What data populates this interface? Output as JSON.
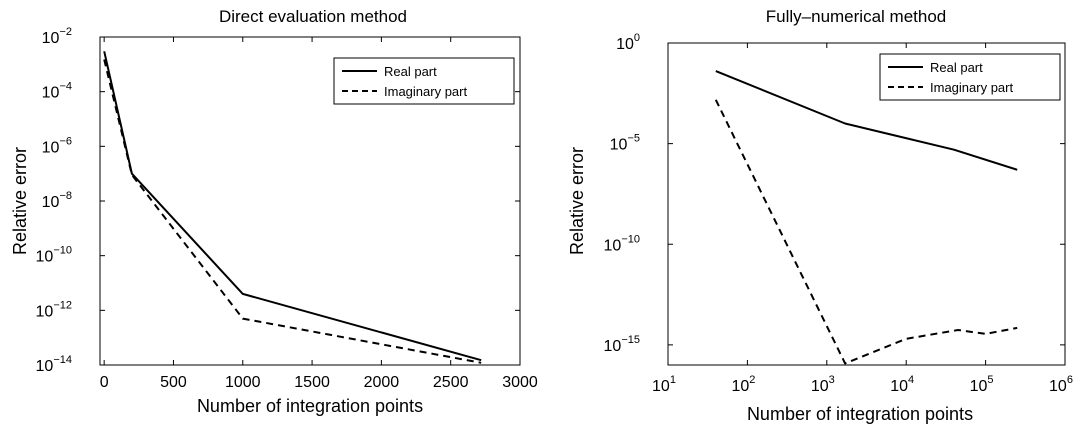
{
  "chart_data": [
    {
      "type": "line",
      "title": "Direct evaluation method",
      "xlabel": "Number of integration points",
      "ylabel": "Relative error",
      "xscale": "linear",
      "yscale": "log",
      "xlim": [
        -30,
        3000
      ],
      "ylim": [
        1e-14,
        0.01
      ],
      "xticks": [
        0,
        500,
        1000,
        1500,
        2000,
        2500,
        3000
      ],
      "xtick_labels": [
        "0",
        "500",
        "1000",
        "1500",
        "2000",
        "2500",
        "3000"
      ],
      "yticks": [
        0.01,
        0.0001,
        1e-06,
        1e-08,
        1e-10,
        1e-12,
        1e-14
      ],
      "ytick_labels": [
        {
          "base": "10",
          "exp": "-2"
        },
        {
          "base": "10",
          "exp": "-4"
        },
        {
          "base": "10",
          "exp": "-6"
        },
        {
          "base": "10",
          "exp": "-8"
        },
        {
          "base": "10",
          "exp": "-10"
        },
        {
          "base": "10",
          "exp": "-12"
        },
        {
          "base": "10",
          "exp": "-14"
        }
      ],
      "grid": false,
      "legend_position": "top-right",
      "series": [
        {
          "name": "Real part",
          "style": "solid",
          "color": "#000000",
          "x": [
            0,
            200,
            1000,
            2720
          ],
          "y": [
            0.003,
            1e-07,
            4e-12,
            1.5e-14
          ]
        },
        {
          "name": "Imaginary part",
          "style": "dashed",
          "color": "#000000",
          "x": [
            0,
            200,
            1000,
            2720
          ],
          "y": [
            0.0015,
            9e-08,
            5e-13,
            1.2e-14
          ]
        }
      ]
    },
    {
      "type": "line",
      "title": "Fully–numerical method",
      "xlabel": "Number of integration points",
      "ylabel": "Relative error",
      "xscale": "log",
      "yscale": "log",
      "xlim": [
        10,
        1000000
      ],
      "ylim": [
        1e-16,
        1
      ],
      "xticks": [
        10,
        100,
        1000,
        10000,
        100000,
        1000000
      ],
      "xtick_labels": [
        {
          "base": "10",
          "exp": "1"
        },
        {
          "base": "10",
          "exp": "2"
        },
        {
          "base": "10",
          "exp": "3"
        },
        {
          "base": "10",
          "exp": "4"
        },
        {
          "base": "10",
          "exp": "5"
        },
        {
          "base": "10",
          "exp": "6"
        }
      ],
      "yticks": [
        1,
        1e-05,
        1e-10,
        1e-15
      ],
      "ytick_labels": [
        {
          "base": "10",
          "exp": "0"
        },
        {
          "base": "10",
          "exp": "-5"
        },
        {
          "base": "10",
          "exp": "-10"
        },
        {
          "base": "10",
          "exp": "-15"
        }
      ],
      "grid": false,
      "legend_position": "top-right",
      "series": [
        {
          "name": "Real part",
          "style": "solid",
          "color": "#000000",
          "x": [
            40,
            1700,
            40000,
            250000
          ],
          "y": [
            0.04,
            0.0001,
            5e-06,
            5e-07
          ]
        },
        {
          "name": "Imaginary part",
          "style": "dashed",
          "color": "#000000",
          "x": [
            40,
            1700,
            10000,
            45000,
            100000,
            250000
          ],
          "y": [
            0.0015,
            1.2e-16,
            2e-15,
            5.5e-15,
            3.5e-15,
            7e-15
          ]
        }
      ]
    }
  ]
}
